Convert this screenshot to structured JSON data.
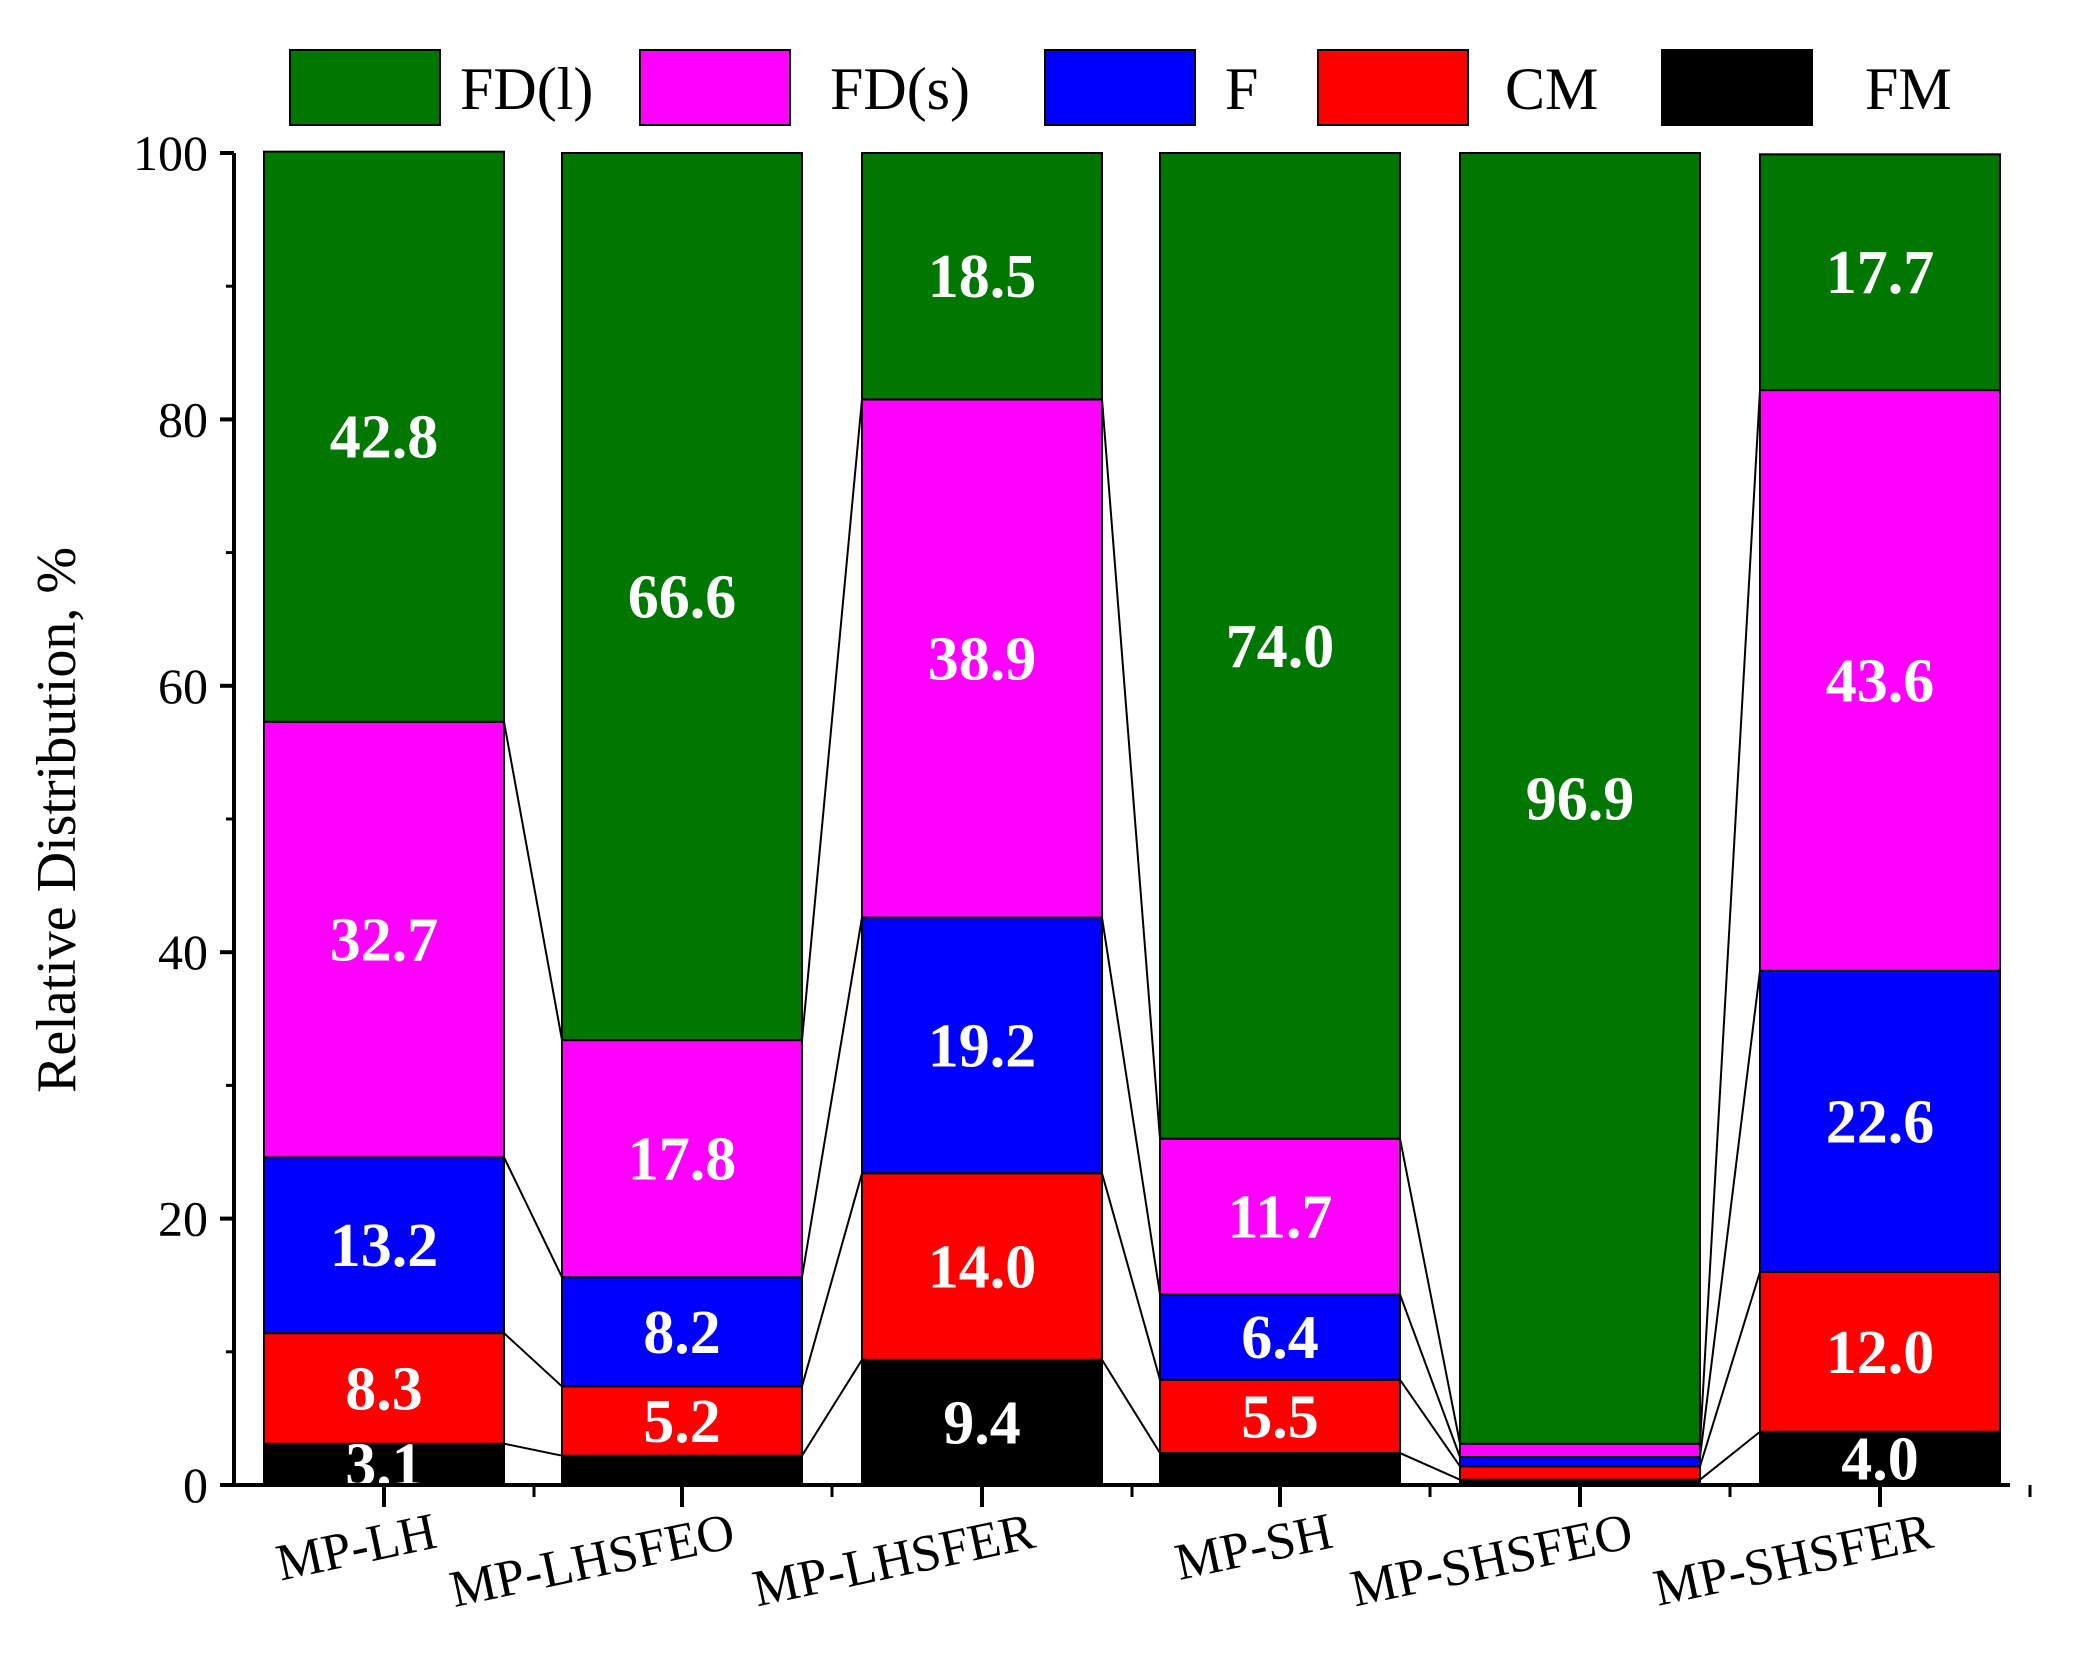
{
  "chart_data": {
    "type": "bar",
    "stacked": true,
    "title": "",
    "xlabel": "",
    "ylabel": "Relative Distribution, %",
    "ylim": [
      0,
      100
    ],
    "yticks": [
      0,
      20,
      40,
      60,
      80,
      100
    ],
    "legend_position": "top",
    "categories": [
      "MP-LH",
      "MP-LHSFEO",
      "MP-LHSFER",
      "MP-SH",
      "MP-SHSFEO",
      "MP-SHSFER"
    ],
    "series": [
      {
        "name": "FM",
        "color": "#000000",
        "values": [
          3.1,
          2.2,
          9.4,
          2.4,
          0.4,
          4.0
        ]
      },
      {
        "name": "CM",
        "color": "#ff0000",
        "values": [
          8.3,
          5.2,
          14.0,
          5.5,
          1.0,
          12.0
        ]
      },
      {
        "name": "F",
        "color": "#0000ff",
        "values": [
          13.2,
          8.2,
          19.2,
          6.4,
          0.7,
          22.6
        ]
      },
      {
        "name": "FD(s)",
        "color": "#ff00ff",
        "values": [
          32.7,
          17.8,
          38.9,
          11.7,
          1.0,
          43.6
        ]
      },
      {
        "name": "FD(l)",
        "color": "#007700",
        "values": [
          42.8,
          66.6,
          18.5,
          74.0,
          96.9,
          17.7
        ]
      }
    ],
    "data_labels": [
      [
        "3.1",
        "8.3",
        "13.2",
        "32.7",
        "42.8"
      ],
      [
        "",
        "5.2",
        "8.2",
        "17.8",
        "66.6"
      ],
      [
        "9.4",
        "14.0",
        "19.2",
        "38.9",
        "18.5"
      ],
      [
        "",
        "5.5",
        "6.4",
        "11.7",
        "74.0"
      ],
      [
        "",
        "",
        "",
        "",
        "96.9"
      ],
      [
        "4.0",
        "12.0",
        "22.6",
        "43.6",
        "17.7"
      ]
    ],
    "legend_order": [
      "FD(l)",
      "FD(s)",
      "F",
      "CM",
      "FM"
    ]
  }
}
